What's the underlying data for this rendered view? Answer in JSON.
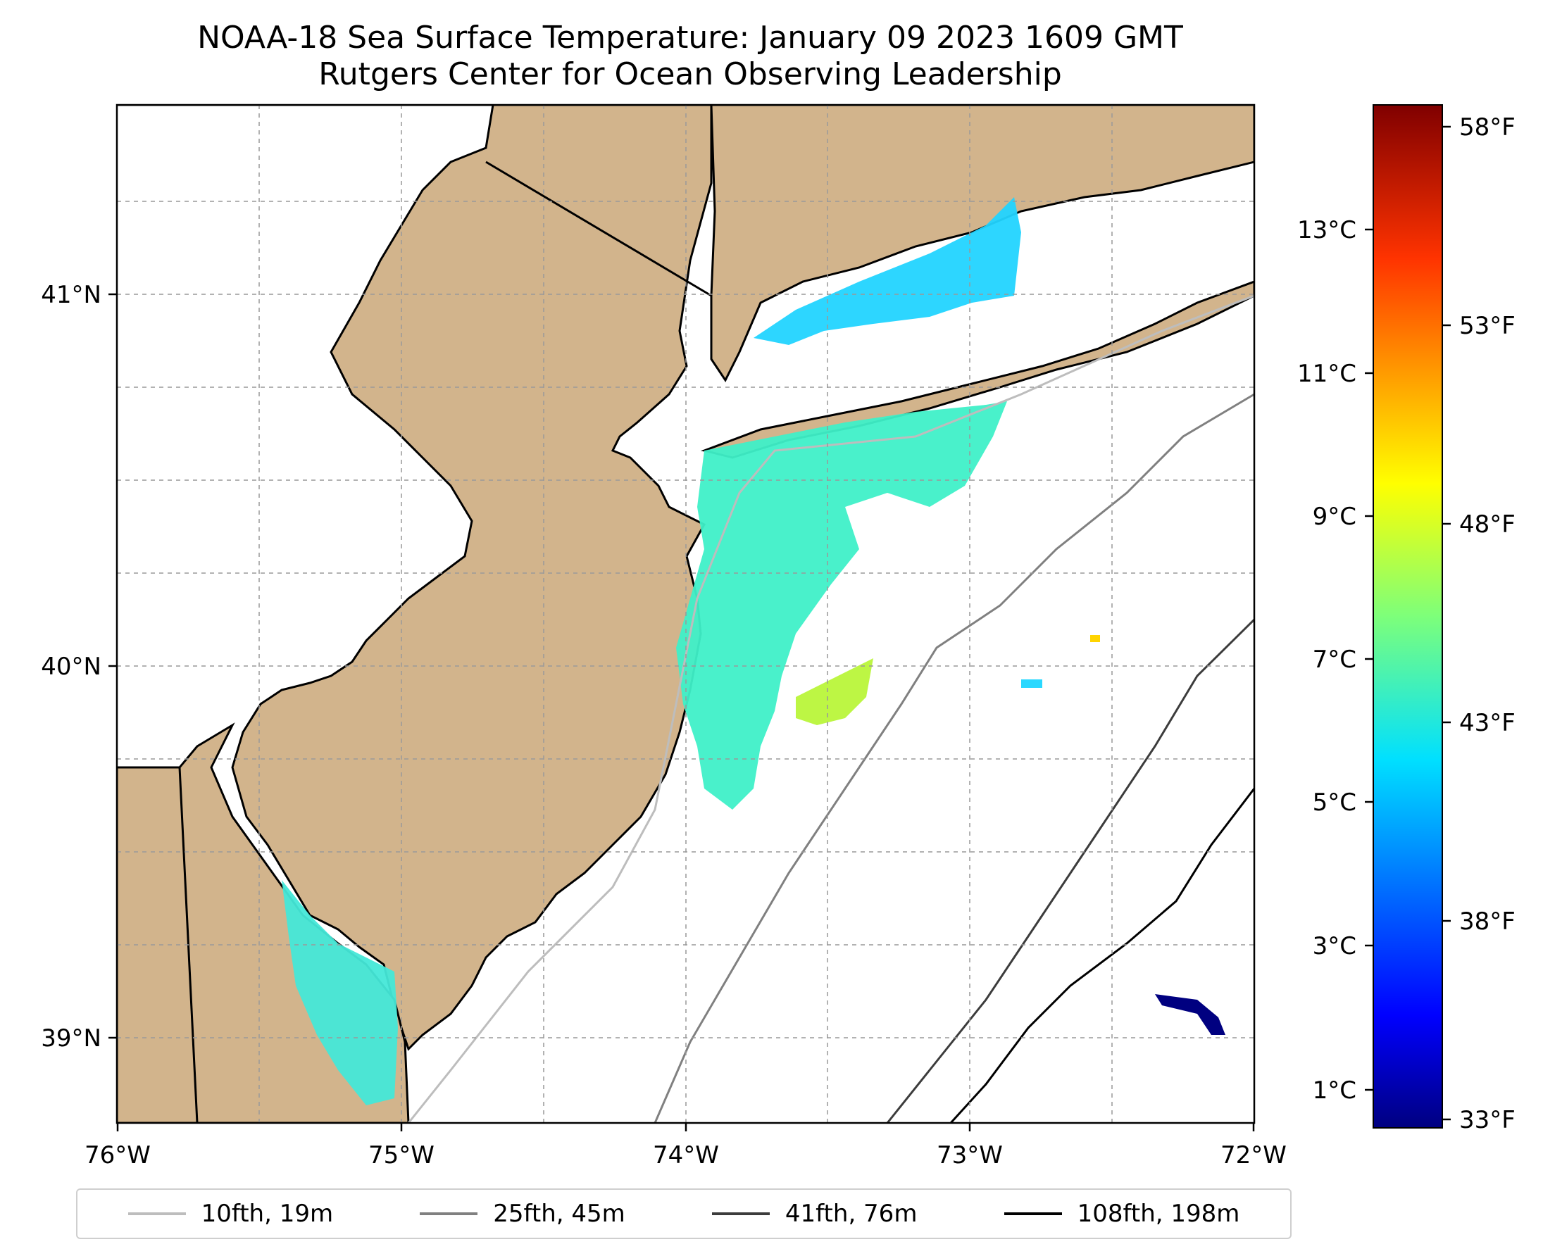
{
  "title": {
    "line1": "NOAA-18 Sea Surface Temperature: January 09 2023 1609 GMT",
    "line2": "Rutgers Center for Ocean Observing Leadership"
  },
  "map": {
    "lon_ticks": [
      "76°W",
      "75°W",
      "74°W",
      "73°W",
      "72°W"
    ],
    "lat_ticks": [
      "41°N",
      "40°N",
      "39°N"
    ],
    "land_color": "#d2b48c",
    "ocean_color": "#ffffff",
    "grid": true,
    "bathymetry_legend": [
      {
        "label": "10fth, 19m",
        "color": "#bdbdbd"
      },
      {
        "label": "25fth, 45m",
        "color": "#808080"
      },
      {
        "label": "41fth, 76m",
        "color": "#3c3c3c"
      },
      {
        "label": "108fth, 198m",
        "color": "#000000"
      }
    ]
  },
  "colorbar": {
    "celsius_ticks": [
      "13°C",
      "11°C",
      "9°C",
      "7°C",
      "5°C",
      "3°C",
      "1°C"
    ],
    "fahrenheit_ticks": [
      "58°F",
      "53°F",
      "48°F",
      "43°F",
      "38°F",
      "33°F"
    ],
    "colormap": "jet"
  }
}
